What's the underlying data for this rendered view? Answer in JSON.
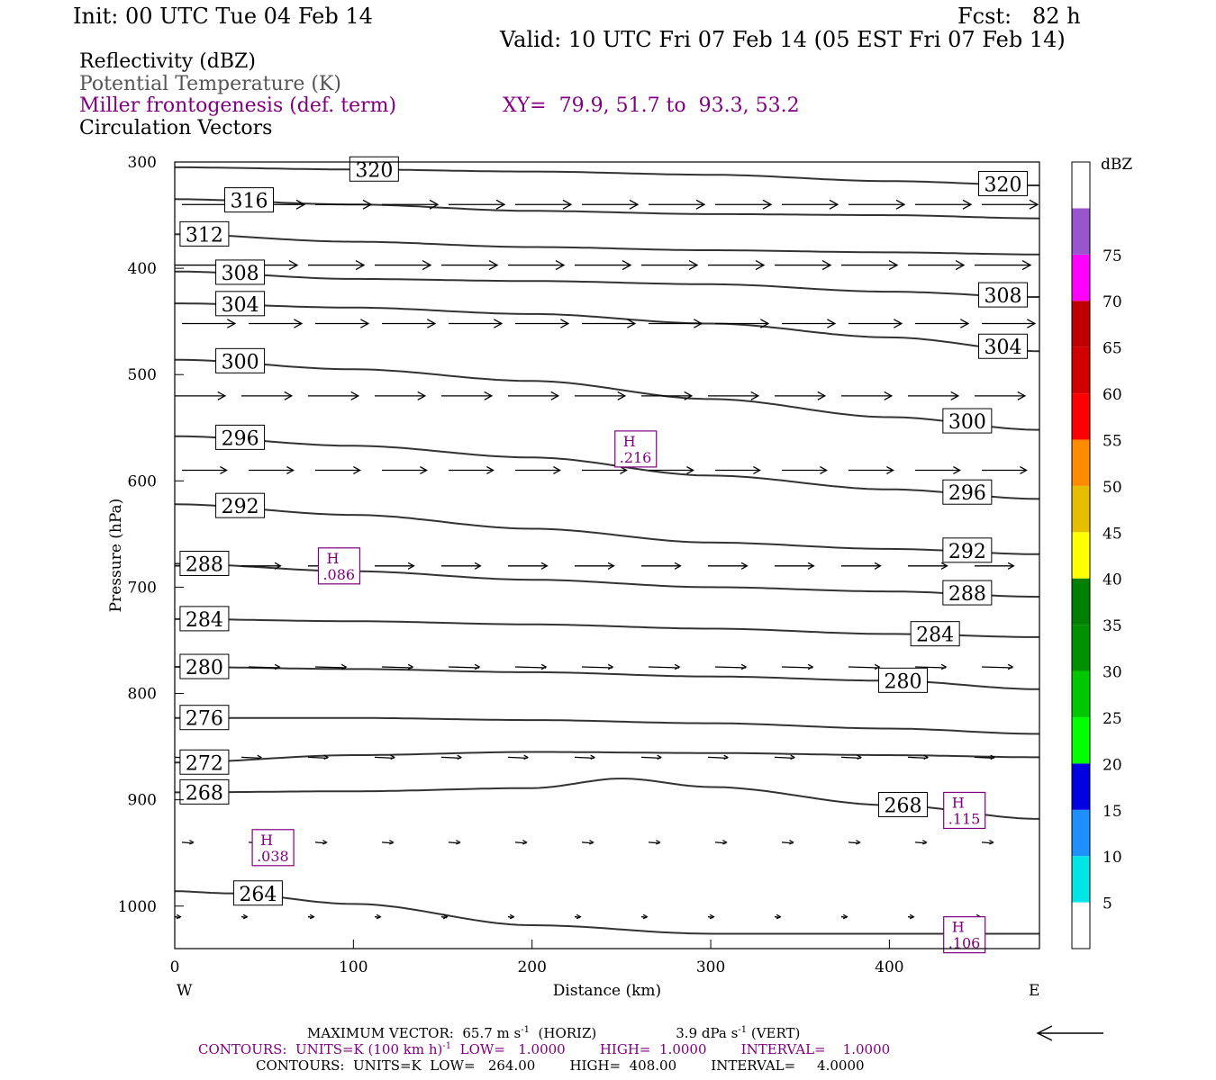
{
  "header": {
    "init": "Init: 00 UTC Tue 04 Feb 14",
    "fcst": "Fcst:   82 h",
    "valid": "Valid: 10 UTC Fri 07 Feb 14 (05 EST Fri 07 Feb 14)"
  },
  "legend": {
    "reflectivity": "Reflectivity (dBZ)",
    "theta": "Potential Temperature (K)",
    "miller": "Miller frontogenesis (def. term)",
    "xy": "XY=  79.9, 51.7 to  93.3, 53.2",
    "circulation": "Circulation Vectors"
  },
  "footer": {
    "max_vector_prefix": "MAXIMUM VECTOR:  65.7 m s",
    "max_vector_horiz": "(HORIZ)",
    "max_vector_vert_prefix": "3.9 dPa s",
    "max_vector_vert": "(VERT)",
    "sup": "-1",
    "contours1_a": "CONTOURS:  UNITS=K (100 km h)",
    "contours1_b": "LOW=   1.0000        HIGH=  1.0000        INTERVAL=    1.0000",
    "contours2": "CONTOURS:  UNITS=K  LOW=   264.00        HIGH=  408.00        INTERVAL=     4.0000"
  },
  "colors": {
    "purple": "#800080",
    "contour": "#333333",
    "colorbar": [
      "#ffffff",
      "#00e5e5",
      "#1e90ff",
      "#0000e0",
      "#00ff00",
      "#00c800",
      "#009000",
      "#008000",
      "#ffff00",
      "#e6be00",
      "#ff8c00",
      "#ff0000",
      "#d00000",
      "#c00000",
      "#ff00ff",
      "#9955cc",
      "#ffffff"
    ]
  },
  "chart_data": {
    "type": "cross-section",
    "xlabel": "Distance (km)",
    "ylabel": "Pressure (hPa)",
    "xlim": [
      0,
      484
    ],
    "ylim": [
      1040,
      300
    ],
    "x_ticks": [
      "0",
      "100",
      "200",
      "300",
      "400"
    ],
    "x_tick_values": [
      0,
      100,
      200,
      300,
      400
    ],
    "y_ticks": [
      "300",
      "400",
      "500",
      "600",
      "700",
      "800",
      "900",
      "1000"
    ],
    "y_tick_values": [
      300,
      400,
      500,
      600,
      700,
      800,
      900,
      1000
    ],
    "x_end_labels": {
      "west": "W",
      "east": "E"
    },
    "colorbar": {
      "unit": "dBZ",
      "labels": [
        "5",
        "10",
        "15",
        "20",
        "25",
        "30",
        "35",
        "40",
        "45",
        "50",
        "55",
        "60",
        "65",
        "70",
        "75"
      ]
    },
    "theta_contours": [
      {
        "value": 320,
        "label": "320",
        "x": [
          0,
          100,
          200,
          300,
          400,
          484
        ],
        "p": [
          305,
          307,
          309,
          312,
          318,
          322
        ]
      },
      {
        "value": 316,
        "label": "316",
        "x": [
          0,
          100,
          200,
          300,
          400,
          484
        ],
        "p": [
          335,
          340,
          346,
          349,
          350,
          353
        ]
      },
      {
        "value": 312,
        "label": "312",
        "x": [
          0,
          100,
          200,
          300,
          400,
          484
        ],
        "p": [
          368,
          375,
          380,
          383,
          385,
          387
        ]
      },
      {
        "value": 308,
        "label": "308",
        "x": [
          0,
          100,
          200,
          300,
          400,
          484
        ],
        "p": [
          403,
          410,
          412,
          415,
          422,
          427
        ]
      },
      {
        "value": 304,
        "label": "304",
        "x": [
          0,
          100,
          200,
          300,
          400,
          484
        ],
        "p": [
          433,
          437,
          443,
          452,
          465,
          478
        ]
      },
      {
        "value": 300,
        "label": "300",
        "x": [
          0,
          100,
          200,
          300,
          400,
          484
        ],
        "p": [
          486,
          495,
          506,
          523,
          540,
          552
        ]
      },
      {
        "value": 296,
        "label": "296",
        "x": [
          0,
          100,
          200,
          300,
          400,
          484
        ],
        "p": [
          558,
          567,
          578,
          595,
          608,
          617
        ]
      },
      {
        "value": 292,
        "label": "292",
        "x": [
          0,
          100,
          200,
          300,
          400,
          484
        ],
        "p": [
          622,
          632,
          645,
          658,
          664,
          669
        ]
      },
      {
        "value": 288,
        "label": "288",
        "x": [
          0,
          100,
          200,
          300,
          400,
          484
        ],
        "p": [
          678,
          685,
          693,
          700,
          704,
          709
        ]
      },
      {
        "value": 284,
        "label": "284",
        "x": [
          0,
          100,
          200,
          300,
          400,
          484
        ],
        "p": [
          730,
          732,
          735,
          739,
          744,
          747
        ]
      },
      {
        "value": 280,
        "label": "280",
        "x": [
          0,
          100,
          200,
          300,
          400,
          484
        ],
        "p": [
          775,
          777,
          780,
          784,
          788,
          796
        ]
      },
      {
        "value": 276,
        "label": "276",
        "x": [
          0,
          100,
          200,
          300,
          400,
          484
        ],
        "p": [
          823,
          823,
          825,
          828,
          833,
          838
        ]
      },
      {
        "value": 272,
        "label": "272",
        "x": [
          0,
          100,
          200,
          300,
          400,
          484
        ],
        "p": [
          865,
          858,
          855,
          856,
          858,
          860
        ]
      },
      {
        "value": 268,
        "label": "268",
        "x": [
          0,
          100,
          200,
          250,
          300,
          400,
          484
        ],
        "p": [
          893,
          892,
          889,
          880,
          888,
          905,
          918
        ]
      },
      {
        "value": 264,
        "label": "264",
        "x": [
          0,
          30,
          100,
          200,
          300,
          400,
          484
        ],
        "p": [
          986,
          988,
          998,
          1018,
          1026,
          1026,
          1026
        ]
      }
    ],
    "frontogenesis_maxima": [
      {
        "label": "H",
        "value": ".216",
        "x": 258,
        "p": 570
      },
      {
        "label": "H",
        "value": ".086",
        "x": 92,
        "p": 680
      },
      {
        "label": "H",
        "value": ".038",
        "x": 55,
        "p": 945
      },
      {
        "label": "H",
        "value": ".115",
        "x": 442,
        "p": 910
      },
      {
        "label": "H",
        "value": ".106",
        "x": 442,
        "p": 1027
      }
    ],
    "vector_rows": [
      {
        "p": 340,
        "u": 1.0,
        "w": 0.0
      },
      {
        "p": 397,
        "u": 1.0,
        "w": 0.0
      },
      {
        "p": 452,
        "u": 0.95,
        "w": 0.0
      },
      {
        "p": 520,
        "u": 0.9,
        "w": 0.0
      },
      {
        "p": 590,
        "u": 0.8,
        "w": 0.0
      },
      {
        "p": 680,
        "u": 0.7,
        "w": 0.0
      },
      {
        "p": 775,
        "u": 0.55,
        "w": 0.0
      },
      {
        "p": 860,
        "u": 0.35,
        "w": 0.0
      },
      {
        "p": 940,
        "u": 0.2,
        "w": 0.0
      },
      {
        "p": 1010,
        "u": 0.1,
        "w": 0.0
      }
    ],
    "grid": false
  }
}
